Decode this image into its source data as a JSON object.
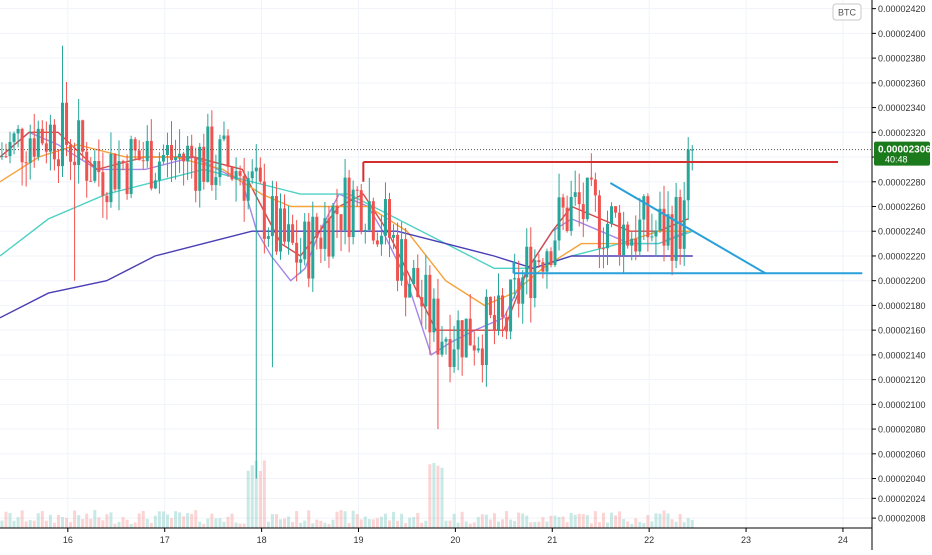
{
  "chart_data": {
    "type": "candlestick",
    "currency_label": "BTC",
    "price": {
      "last": "0.00002306",
      "countdown": "40:48",
      "colors": {
        "up": "#26a69a",
        "down": "#ef5350",
        "label_bg": "#1b7a1b"
      }
    },
    "y_axis": {
      "min": 2e-05,
      "max": 2.427e-05,
      "ticks": [
        "0.00002420",
        "0.00002400",
        "0.00002380",
        "0.00002360",
        "0.00002340",
        "0.00002320",
        "0.00002300",
        "0.00002280",
        "0.00002260",
        "0.00002240",
        "0.00002220",
        "0.00002200",
        "0.00002180",
        "0.00002160",
        "0.00002140",
        "0.00002120",
        "0.00002100",
        "0.00002080",
        "0.00002060",
        "0.00002040",
        "0.00002024",
        "0.00002008"
      ]
    },
    "x_axis": {
      "min": 15.3,
      "max": 24.3,
      "ticks": [
        "16",
        "17",
        "18",
        "19",
        "20",
        "21",
        "22",
        "23",
        "24"
      ]
    },
    "moving_averages": [
      {
        "color": "#a586ea",
        "points": [
          [
            15.3,
            2.3e-05
          ],
          [
            15.6,
            2.32e-05
          ],
          [
            15.9,
            2.31e-05
          ],
          [
            16.3,
            2.29e-05
          ],
          [
            16.8,
            2.29e-05
          ],
          [
            17.3,
            2.3e-05
          ],
          [
            17.8,
            2.28e-05
          ],
          [
            17.95,
            2.24e-05
          ],
          [
            18.1,
            2.22e-05
          ],
          [
            18.3,
            2.2e-05
          ],
          [
            18.45,
            2.21e-05
          ],
          [
            18.6,
            2.24e-05
          ],
          [
            18.8,
            2.27e-05
          ],
          [
            19.1,
            2.26e-05
          ],
          [
            19.25,
            2.24e-05
          ],
          [
            19.5,
            2.2e-05
          ],
          [
            19.75,
            2.14e-05
          ],
          [
            19.95,
            2.15e-05
          ],
          [
            20.2,
            2.16e-05
          ],
          [
            20.5,
            2.17e-05
          ],
          [
            20.75,
            2.21e-05
          ],
          [
            21.0,
            2.24e-05
          ],
          [
            21.2,
            2.25e-05
          ],
          [
            21.5,
            2.24e-05
          ],
          [
            21.8,
            2.23e-05
          ],
          [
            22.1,
            2.23e-05
          ],
          [
            22.4,
            2.24e-05
          ]
        ]
      },
      {
        "color": "#d44a4a",
        "points": [
          [
            15.3,
            2.3e-05
          ],
          [
            15.6,
            2.32e-05
          ],
          [
            15.9,
            2.32e-05
          ],
          [
            16.3,
            2.29e-05
          ],
          [
            16.8,
            2.3e-05
          ],
          [
            17.3,
            2.3e-05
          ],
          [
            17.8,
            2.29e-05
          ],
          [
            18.0,
            2.26e-05
          ],
          [
            18.2,
            2.23e-05
          ],
          [
            18.4,
            2.22e-05
          ],
          [
            18.6,
            2.24e-05
          ],
          [
            18.8,
            2.26e-05
          ],
          [
            19.05,
            2.27e-05
          ],
          [
            19.3,
            2.24e-05
          ],
          [
            19.55,
            2.2e-05
          ],
          [
            19.8,
            2.16e-05
          ],
          [
            20.1,
            2.16e-05
          ],
          [
            20.5,
            2.16e-05
          ],
          [
            20.75,
            2.21e-05
          ],
          [
            21.0,
            2.24e-05
          ],
          [
            21.2,
            2.26e-05
          ],
          [
            21.5,
            2.25e-05
          ],
          [
            21.8,
            2.24e-05
          ],
          [
            22.1,
            2.24e-05
          ],
          [
            22.4,
            2.25e-05
          ]
        ]
      },
      {
        "color": "#f5a23a",
        "points": [
          [
            15.3,
            2.28e-05
          ],
          [
            15.7,
            2.3e-05
          ],
          [
            16.1,
            2.31e-05
          ],
          [
            16.6,
            2.3e-05
          ],
          [
            17.1,
            2.3e-05
          ],
          [
            17.6,
            2.29e-05
          ],
          [
            18.0,
            2.27e-05
          ],
          [
            18.3,
            2.26e-05
          ],
          [
            18.7,
            2.26e-05
          ],
          [
            19.1,
            2.26e-05
          ],
          [
            19.5,
            2.24e-05
          ],
          [
            19.9,
            2.2e-05
          ],
          [
            20.3,
            2.18e-05
          ],
          [
            20.6,
            2.19e-05
          ],
          [
            20.9,
            2.21e-05
          ],
          [
            21.3,
            2.23e-05
          ],
          [
            21.7,
            2.23e-05
          ],
          [
            22.1,
            2.24e-05
          ],
          [
            22.45,
            2.24e-05
          ]
        ]
      },
      {
        "color": "#4fd1c5",
        "points": [
          [
            15.3,
            2.22e-05
          ],
          [
            15.8,
            2.25e-05
          ],
          [
            16.4,
            2.27e-05
          ],
          [
            16.9,
            2.28e-05
          ],
          [
            17.4,
            2.29e-05
          ],
          [
            17.9,
            2.28e-05
          ],
          [
            18.4,
            2.27e-05
          ],
          [
            18.9,
            2.27e-05
          ],
          [
            19.4,
            2.25e-05
          ],
          [
            19.9,
            2.23e-05
          ],
          [
            20.4,
            2.21e-05
          ],
          [
            20.8,
            2.21e-05
          ],
          [
            21.2,
            2.22e-05
          ],
          [
            21.7,
            2.23e-05
          ],
          [
            22.1,
            2.23e-05
          ],
          [
            22.45,
            2.24e-05
          ]
        ]
      },
      {
        "color": "#4a3fb5",
        "points": [
          [
            15.3,
            2.17e-05
          ],
          [
            15.8,
            2.19e-05
          ],
          [
            16.4,
            2.2e-05
          ],
          [
            16.9,
            2.22e-05
          ],
          [
            17.4,
            2.23e-05
          ],
          [
            17.9,
            2.24e-05
          ],
          [
            18.4,
            2.24e-05
          ],
          [
            18.9,
            2.24e-05
          ],
          [
            19.4,
            2.24e-05
          ],
          [
            19.9,
            2.23e-05
          ],
          [
            20.4,
            2.22e-05
          ],
          [
            20.8,
            2.21e-05
          ],
          [
            21.2,
            2.22e-05
          ],
          [
            21.7,
            2.22e-05
          ],
          [
            22.1,
            2.22e-05
          ],
          [
            22.45,
            2.22e-05
          ]
        ]
      }
    ],
    "drawings": [
      {
        "color": "#d32f2f",
        "from": [
          19.05,
          2.296e-05
        ],
        "to": [
          23.95,
          2.296e-05
        ]
      },
      {
        "color": "#d32f2f",
        "from": [
          19.05,
          2.296e-05
        ],
        "to": [
          19.05,
          2.28e-05
        ]
      },
      {
        "color": "#29a0d9",
        "from": [
          21.6,
          2.279e-05
        ],
        "to": [
          23.2,
          2.206e-05
        ]
      },
      {
        "color": "#29a0d9",
        "from": [
          20.6,
          2.206e-05
        ],
        "to": [
          24.2,
          2.206e-05
        ]
      },
      {
        "color": "#29a0d9",
        "from": [
          20.6,
          2.206e-05
        ],
        "to": [
          20.6,
          2.215e-05
        ]
      }
    ],
    "volume_max": 1e-07
  }
}
